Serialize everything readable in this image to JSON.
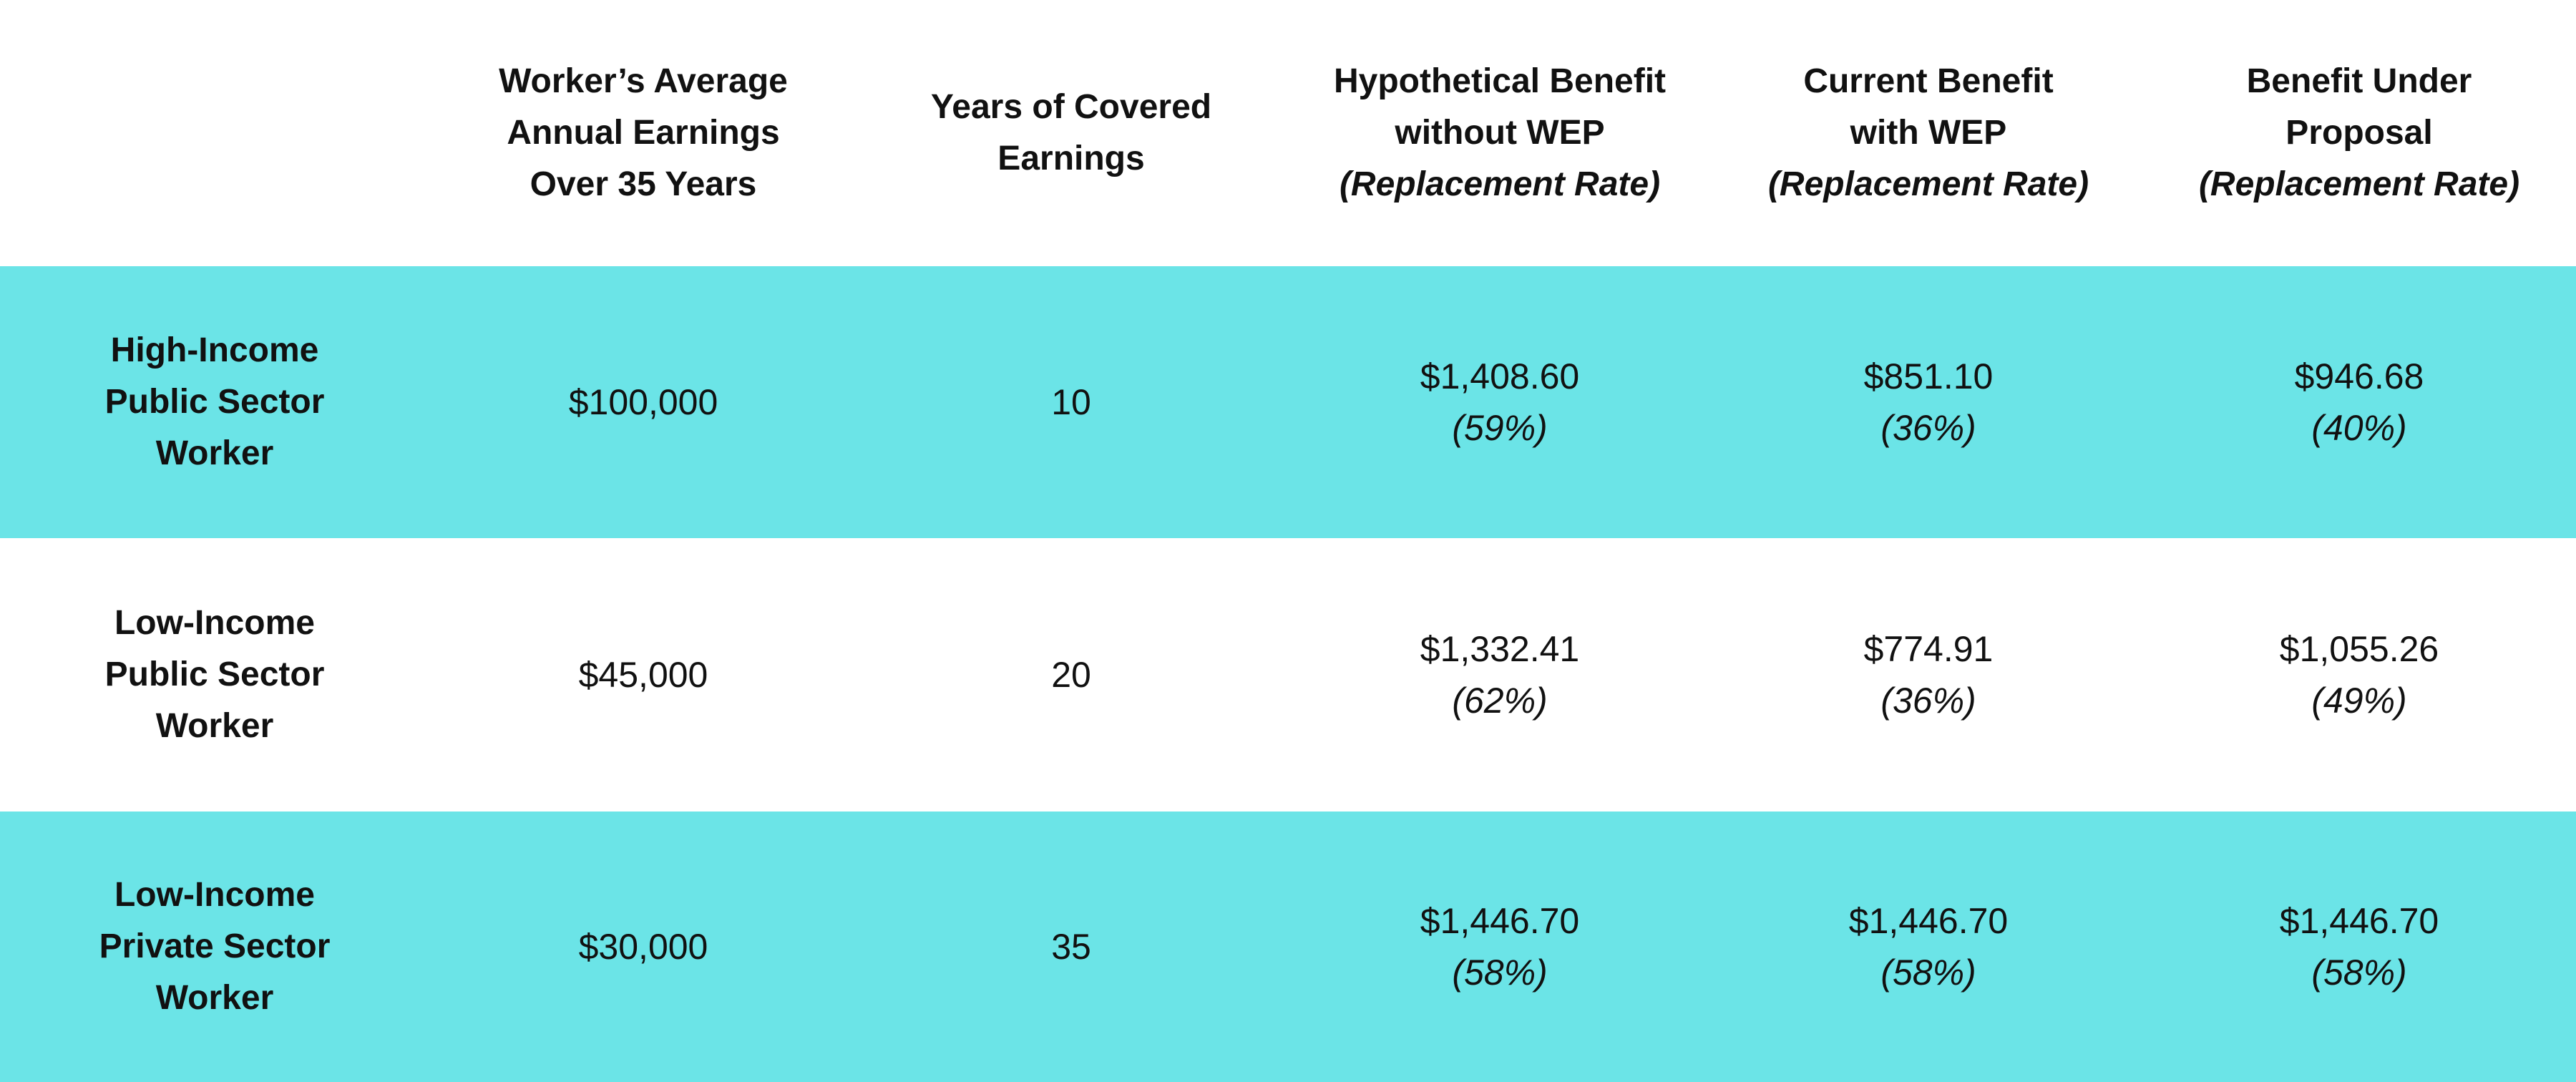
{
  "header": {
    "corner": "",
    "columns": [
      {
        "lines": [
          "Worker’s Average",
          "Annual Earnings",
          "Over 35 Years"
        ],
        "sub": ""
      },
      {
        "lines": [
          "Years of Covered",
          "Earnings"
        ],
        "sub": ""
      },
      {
        "lines": [
          "Hypothetical Benefit",
          "without WEP"
        ],
        "sub": "(Replacement Rate)"
      },
      {
        "lines": [
          "Current Benefit",
          "with WEP"
        ],
        "sub": "(Replacement Rate)"
      },
      {
        "lines": [
          "Benefit Under",
          "Proposal"
        ],
        "sub": "(Replacement Rate)"
      }
    ]
  },
  "rows": [
    {
      "label": [
        "High-Income",
        "Public Sector",
        "Worker"
      ],
      "earnings": "$100,000",
      "years": "10",
      "hypothetical": {
        "amount": "$1,408.60",
        "rate": "(59%)"
      },
      "current": {
        "amount": "$851.10",
        "rate": "(36%)"
      },
      "proposal": {
        "amount": "$946.68",
        "rate": "(40%)"
      }
    },
    {
      "label": [
        "Low-Income",
        "Public Sector",
        "Worker"
      ],
      "earnings": "$45,000",
      "years": "20",
      "hypothetical": {
        "amount": "$1,332.41",
        "rate": "(62%)"
      },
      "current": {
        "amount": "$774.91",
        "rate": "(36%)"
      },
      "proposal": {
        "amount": "$1,055.26",
        "rate": "(49%)"
      }
    },
    {
      "label": [
        "Low-Income",
        "Private Sector",
        "Worker"
      ],
      "earnings": "$30,000",
      "years": "35",
      "hypothetical": {
        "amount": "$1,446.70",
        "rate": "(58%)"
      },
      "current": {
        "amount": "$1,446.70",
        "rate": "(58%)"
      },
      "proposal": {
        "amount": "$1,446.70",
        "rate": "(58%)"
      }
    }
  ],
  "colors": {
    "band": "#6be4e7",
    "background": "#ffffff",
    "text": "#111111"
  }
}
